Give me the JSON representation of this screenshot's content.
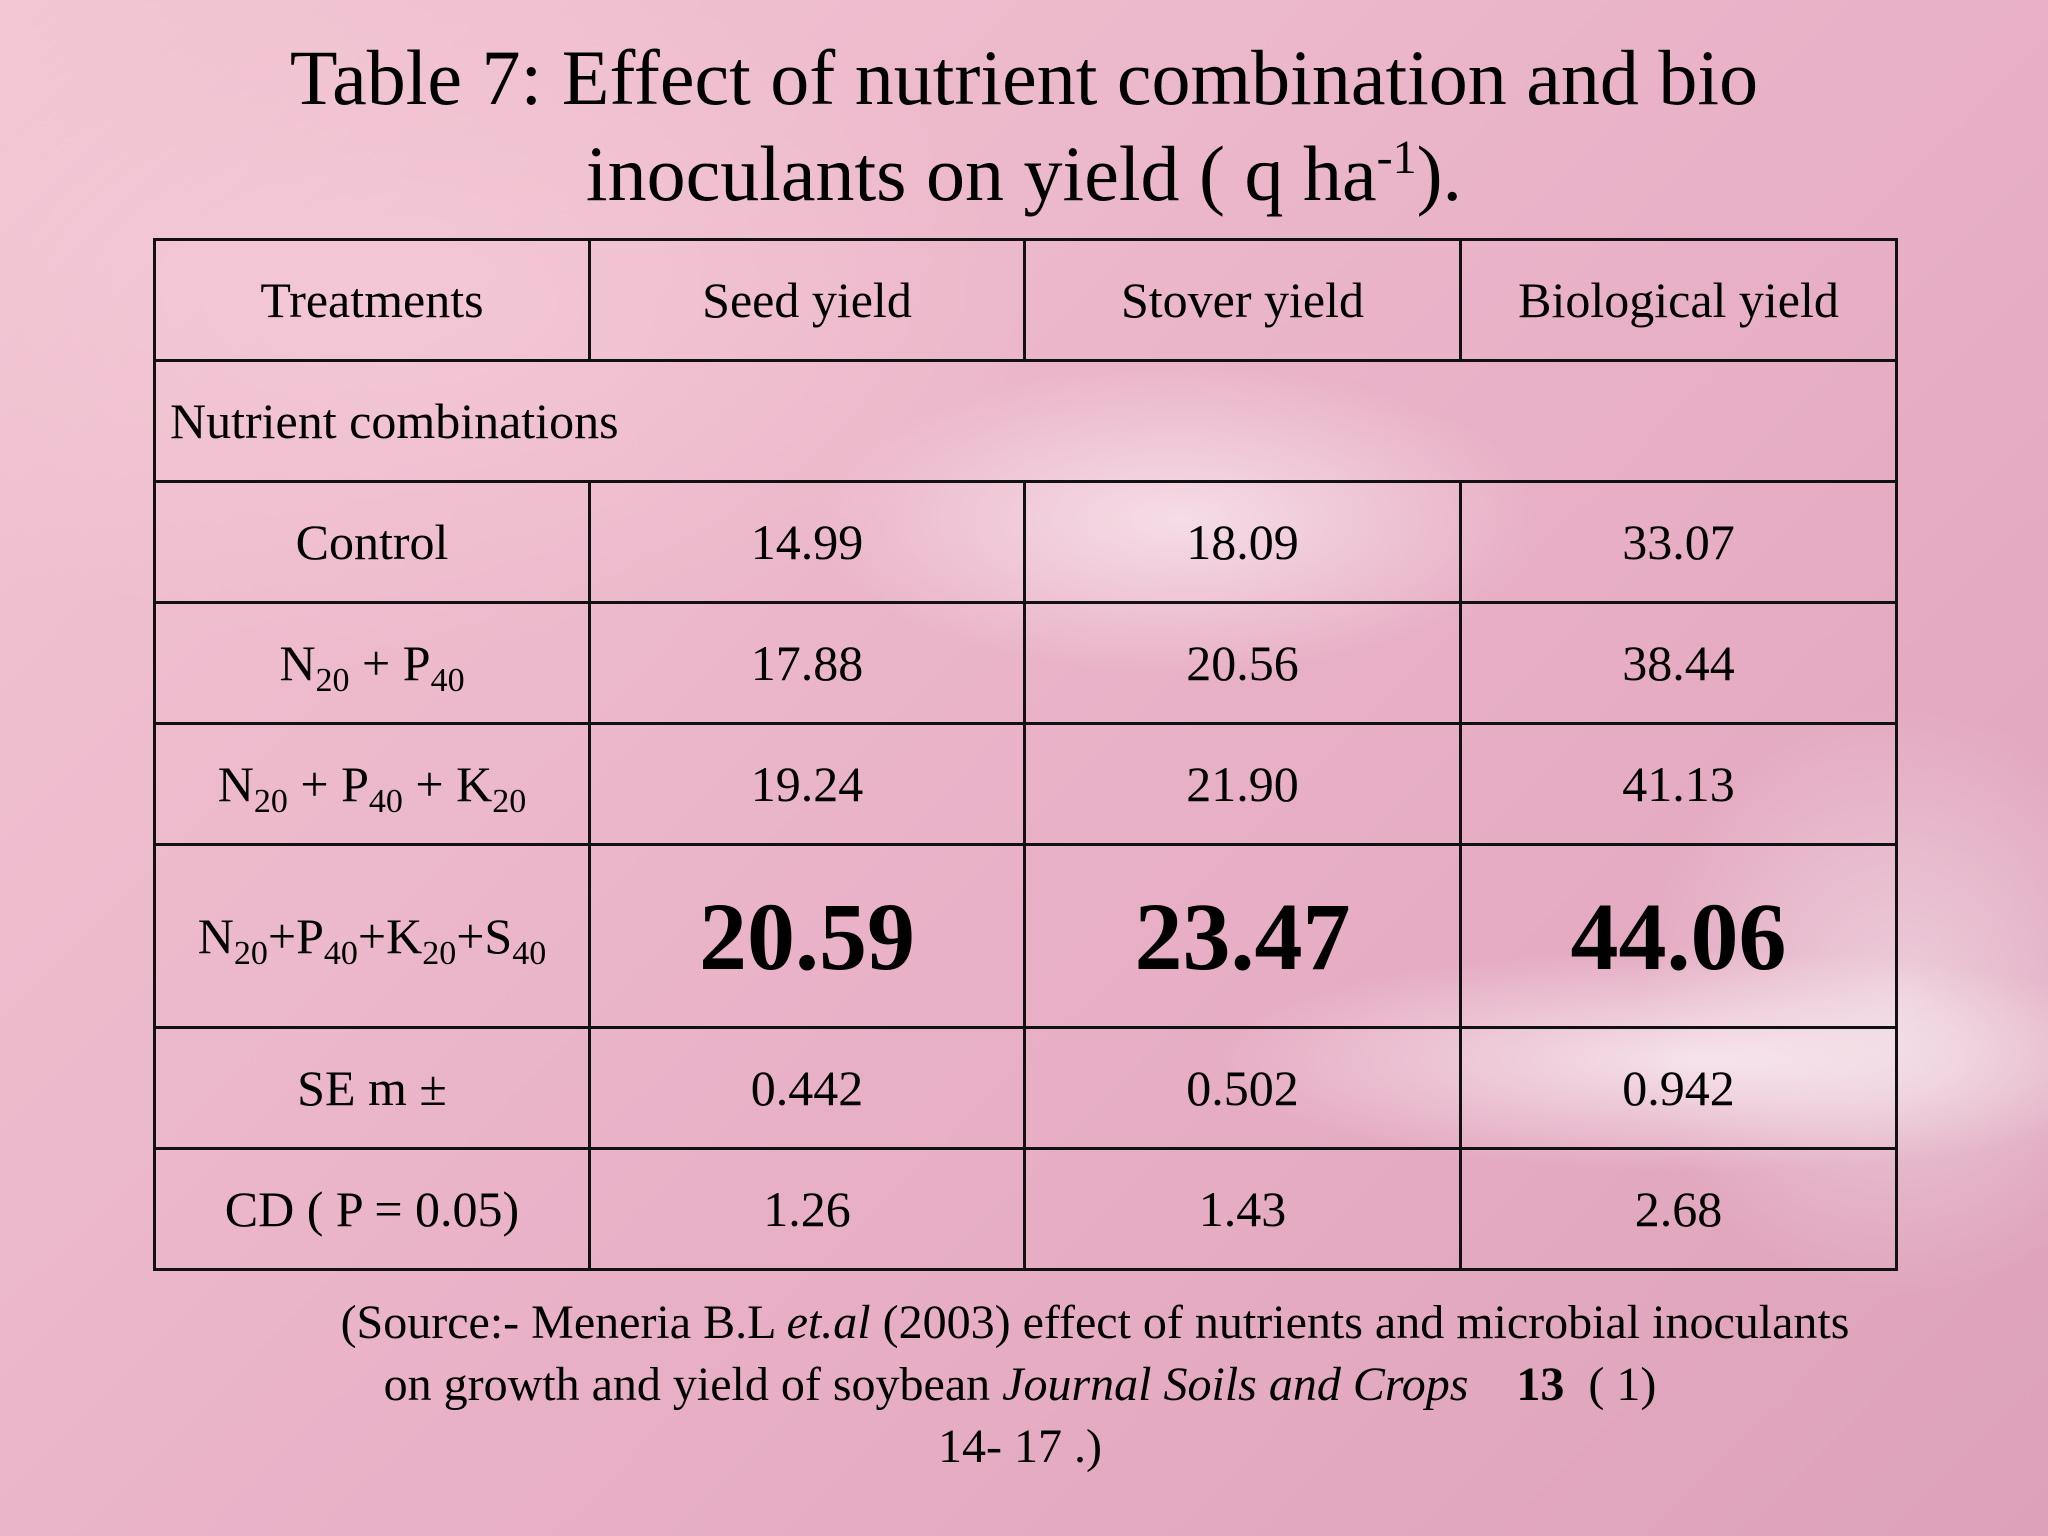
{
  "title": {
    "line1": "Table 7: Effect of nutrient combination and bio",
    "line2_main": "inoculants on yield ( q ha",
    "line2_sup": "-1",
    "line2_end": ")."
  },
  "table": {
    "headers": [
      "Treatments",
      "Seed yield",
      "Stover yield",
      "Biological yield"
    ],
    "section_label": "Nutrient combinations",
    "rows": [
      {
        "treatment": "Control",
        "seed": "14.99",
        "stover": "18.09",
        "biological": "33.07"
      },
      {
        "treatment_parts": [
          "N",
          "20",
          " + P",
          "40"
        ],
        "seed": "17.88",
        "stover": "20.56",
        "biological": "38.44"
      },
      {
        "treatment_parts": [
          "N",
          "20",
          " + P",
          "40",
          " + K",
          "20"
        ],
        "seed": "19.24",
        "stover": "21.90",
        "biological": "41.13"
      },
      {
        "treatment_parts": [
          "N",
          "20",
          "+P",
          "40",
          "+K",
          "20",
          "+S",
          "40"
        ],
        "seed": "20.59",
        "stover": "23.47",
        "biological": "44.06"
      },
      {
        "treatment": "SE m ±",
        "seed": "0.442",
        "stover": "0.502",
        "biological": "0.942"
      },
      {
        "treatment": "CD ( P = 0.05)",
        "seed": "1.26",
        "stover": "1.43",
        "biological": "2.68"
      }
    ]
  },
  "source": {
    "part1": "(Source:- Meneria B.L ",
    "etal": "et.al",
    "part2": " (2003) effect of nutrients and microbial inoculants on growth and yield of soybean ",
    "journal": "Journal Soils and Crops",
    "volume": "13",
    "issue": "( 1)",
    "pages": "14-  17 .)"
  }
}
